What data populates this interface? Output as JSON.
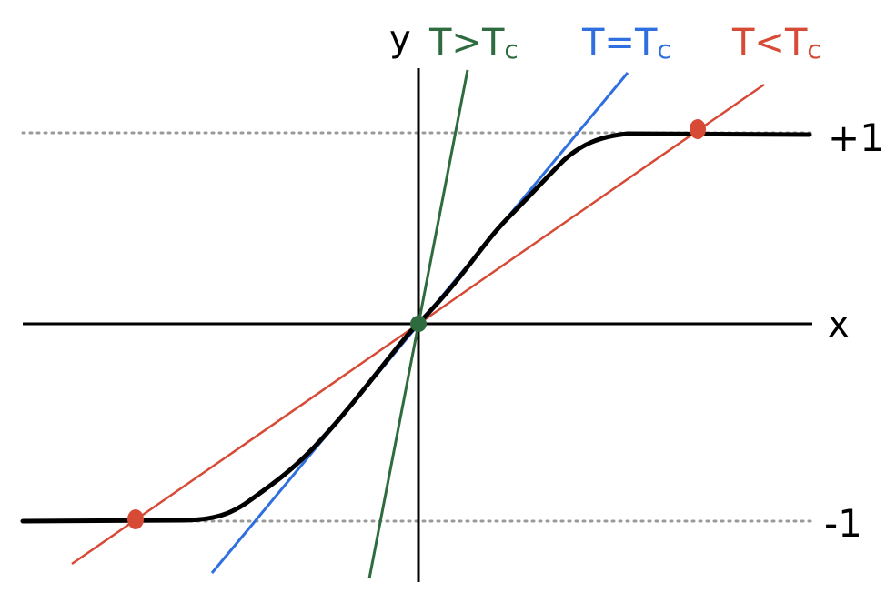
{
  "labels": {
    "y_axis": "y",
    "x_axis": "x",
    "plus_one": "+1",
    "minus_one": "-1",
    "above": "T>T",
    "equal": "T=T",
    "below": "T<T",
    "sub": "c"
  },
  "colors": {
    "curve": "#000000",
    "above": "#2e6b3e",
    "equal": "#2f6fe0",
    "below": "#d64a36",
    "guide": "#9a9a9a",
    "axis": "#000000"
  }
}
